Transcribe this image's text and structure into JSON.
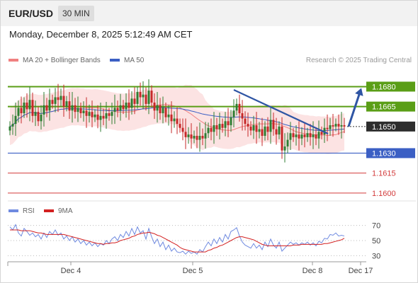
{
  "header": {
    "pair": "EUR/USD",
    "timeframe": "30 MIN",
    "datetime": "Monday, December 8, 2025 5:12:49 AM CET"
  },
  "legend": {
    "ma20": "MA 20 + Bollinger Bands",
    "ma50": "MA 50",
    "credit": "Research © 2025 Trading Central",
    "rsi": "RSI",
    "rsi_ma": "9MA"
  },
  "colors": {
    "up_candle": "#2e7d32",
    "down_candle": "#c62828",
    "resistance": "#5a9e16",
    "support": "#3b5fc4",
    "target": "#d33b3b",
    "ma20": "#f08080",
    "ma50": "#3b5fc4",
    "band_fill": "#fbd9d9",
    "trendline": "#2f55a4",
    "rsi": "#6f8ae0",
    "rsi_ma": "#d32020"
  },
  "chart_data": [
    {
      "type": "candlestick",
      "ylim": [
        1.1593,
        1.1693
      ],
      "x_ticks": [
        "Dec 4",
        "Dec 5",
        "Dec 8",
        "Dec 17"
      ],
      "levels": [
        {
          "label": "1.1680",
          "value": 1.168,
          "kind": "resistance"
        },
        {
          "label": "1.1665",
          "value": 1.1665,
          "kind": "resistance"
        },
        {
          "label": "1.1650",
          "value": 1.165,
          "kind": "current"
        },
        {
          "label": "1.1630",
          "value": 1.163,
          "kind": "support"
        },
        {
          "label": "1.1615",
          "value": 1.1615,
          "kind": "target"
        },
        {
          "label": "1.1600",
          "value": 1.16,
          "kind": "target"
        }
      ],
      "close": [
        1.165,
        1.1652,
        1.1658,
        1.1664,
        1.166,
        1.1668,
        1.1663,
        1.167,
        1.1658,
        1.1661,
        1.1654,
        1.1659,
        1.1666,
        1.1662,
        1.167,
        1.1667,
        1.1672,
        1.167,
        1.1673,
        1.1665,
        1.1669,
        1.1662,
        1.1666,
        1.1661,
        1.1664,
        1.166,
        1.1662,
        1.1658,
        1.1661,
        1.1657,
        1.1659,
        1.1655,
        1.1658,
        1.1656,
        1.166,
        1.1658,
        1.1661,
        1.1664,
        1.1662,
        1.1666,
        1.1663,
        1.1668,
        1.1664,
        1.1671,
        1.1667,
        1.1676,
        1.1672,
        1.1674,
        1.1667,
        1.1677,
        1.1668,
        1.1662,
        1.1666,
        1.166,
        1.1664,
        1.1657,
        1.1659,
        1.1654,
        1.1656,
        1.1652,
        1.1649,
        1.1646,
        1.1642,
        1.1644,
        1.1641,
        1.1643,
        1.164,
        1.1643,
        1.1641,
        1.1645,
        1.1649,
        1.1646,
        1.1651,
        1.1648,
        1.1652,
        1.1649,
        1.1654,
        1.1651,
        1.1657,
        1.1662,
        1.1667,
        1.166,
        1.1656,
        1.1652,
        1.165,
        1.1647,
        1.1651,
        1.1646,
        1.1648,
        1.1643,
        1.165,
        1.1646,
        1.1655,
        1.1648,
        1.1644,
        1.165,
        1.1632,
        1.1635,
        1.164,
        1.1645,
        1.1642,
        1.1644,
        1.1641,
        1.1644,
        1.1642,
        1.1645,
        1.1642,
        1.1644,
        1.1641,
        1.1646,
        1.1644,
        1.1649,
        1.1648,
        1.1651,
        1.165,
        1.1652,
        1.165,
        1.1651,
        1.165
      ],
      "forecast_target": 1.168
    },
    {
      "type": "line",
      "series": [
        {
          "name": "RSI"
        },
        {
          "name": "9MA"
        }
      ],
      "ylim": [
        22,
        78
      ],
      "y_ticks": [
        70,
        50,
        30
      ],
      "rsi": [
        68,
        64,
        71,
        60,
        56,
        66,
        62,
        57,
        60,
        55,
        58,
        52,
        60,
        54,
        62,
        58,
        64,
        57,
        60,
        52,
        56,
        50,
        55,
        48,
        52,
        46,
        50,
        44,
        48,
        43,
        47,
        42,
        46,
        44,
        50,
        46,
        52,
        55,
        50,
        58,
        54,
        62,
        56,
        66,
        58,
        68,
        60,
        63,
        52,
        66,
        55,
        46,
        52,
        42,
        48,
        38,
        44,
        36,
        40,
        35,
        34,
        36,
        32,
        36,
        33,
        35,
        32,
        38,
        35,
        42,
        48,
        43,
        52,
        46,
        54,
        48,
        58,
        52,
        62,
        64,
        67,
        56,
        48,
        44,
        42,
        40,
        46,
        40,
        44,
        38,
        48,
        42,
        52,
        44,
        40,
        48,
        36,
        40,
        44,
        48,
        45,
        47,
        44,
        47,
        45,
        48,
        44,
        47,
        43,
        49,
        47,
        53,
        52,
        58,
        57,
        60,
        56,
        57,
        56
      ],
      "ma9": [
        64,
        64,
        64,
        64,
        63,
        63,
        63,
        63,
        62,
        61,
        60,
        60,
        59,
        58,
        58,
        58,
        58,
        58,
        58,
        58,
        57,
        56,
        55,
        54,
        53,
        52,
        51,
        50,
        49,
        48,
        47,
        46,
        46,
        45,
        46,
        46,
        47,
        47,
        48,
        50,
        51,
        52,
        53,
        55,
        56,
        58,
        59,
        60,
        60,
        61,
        60,
        59,
        57,
        56,
        54,
        52,
        50,
        48,
        46,
        44,
        41,
        39,
        38,
        37,
        36,
        35,
        35,
        35,
        35,
        35,
        37,
        38,
        40,
        41,
        43,
        44,
        46,
        48,
        50,
        52,
        54,
        55,
        55,
        54,
        53,
        52,
        51,
        49,
        47,
        45,
        44,
        43,
        43,
        43,
        43,
        43,
        43,
        43,
        43,
        43,
        44,
        44,
        44,
        45,
        45,
        45,
        45,
        45,
        45,
        45,
        45,
        46,
        46,
        47,
        48,
        49,
        50,
        51,
        53
      ]
    }
  ]
}
